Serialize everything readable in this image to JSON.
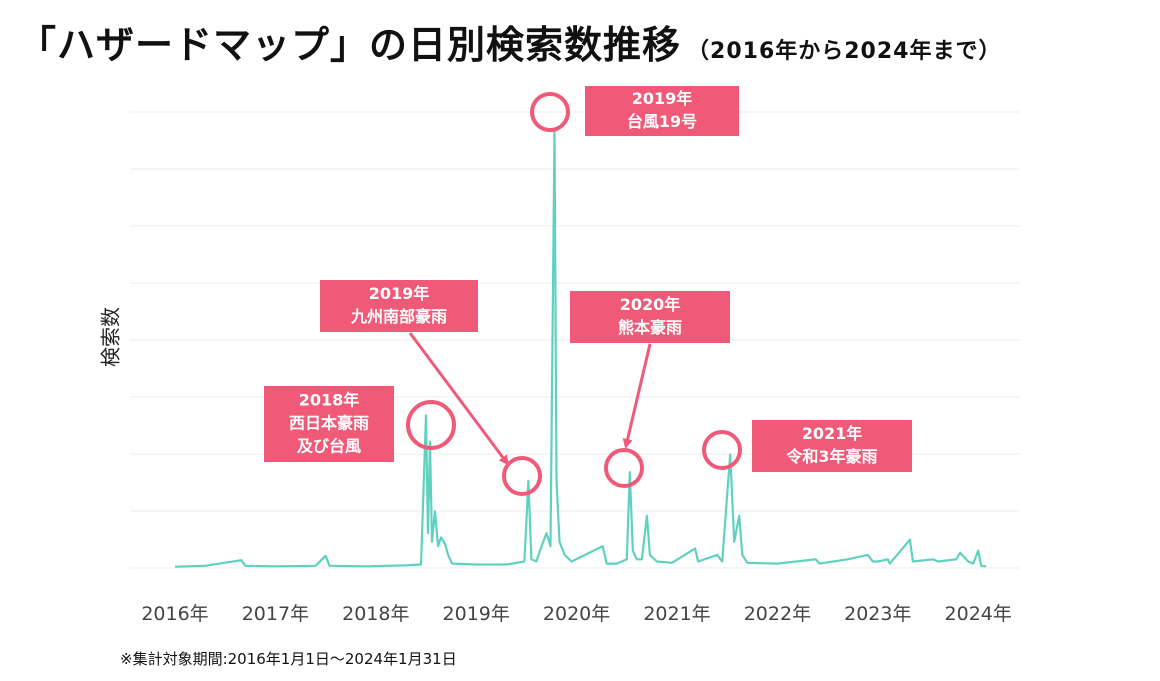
{
  "title": {
    "main": "「ハザードマップ」の日別検索数推移",
    "sub": "（2016年から2024年まで）"
  },
  "footnote": "※集計対象期間:2016年1月1日～2024年1月31日",
  "colors": {
    "line": "#5fd2bf",
    "accent": "#f05a78",
    "label_box": "#f05a78",
    "grid": "#ececec"
  },
  "chart_data": {
    "type": "line",
    "title": "「ハザードマップ」の日別検索数推移",
    "ylabel": "検索数",
    "xlabel": "",
    "x_ticks": [
      "2016年",
      "2017年",
      "2018年",
      "2019年",
      "2020年",
      "2021年",
      "2022年",
      "2023年",
      "2024年"
    ],
    "x_range": [
      2016.0,
      2024.1
    ],
    "y_range": [
      0,
      100
    ],
    "y_axis_ticks_shown": false,
    "grid": "horizontal",
    "series": [
      {
        "values": [
          [
            2016.0,
            0.3
          ],
          [
            2016.3,
            0.5
          ],
          [
            2016.66,
            1.8
          ],
          [
            2016.7,
            0.5
          ],
          [
            2017.0,
            0.4
          ],
          [
            2017.4,
            0.5
          ],
          [
            2017.5,
            2.8
          ],
          [
            2017.54,
            0.5
          ],
          [
            2017.9,
            0.4
          ],
          [
            2018.3,
            0.6
          ],
          [
            2018.45,
            0.8
          ],
          [
            2018.5,
            35
          ],
          [
            2018.52,
            8
          ],
          [
            2018.54,
            29
          ],
          [
            2018.56,
            6
          ],
          [
            2018.59,
            13
          ],
          [
            2018.62,
            5
          ],
          [
            2018.65,
            7
          ],
          [
            2018.69,
            5.5
          ],
          [
            2018.72,
            3
          ],
          [
            2018.76,
            1
          ],
          [
            2019.0,
            0.8
          ],
          [
            2019.3,
            0.8
          ],
          [
            2019.48,
            1.5
          ],
          [
            2019.52,
            20
          ],
          [
            2019.55,
            2
          ],
          [
            2019.6,
            1.5
          ],
          [
            2019.65,
            5
          ],
          [
            2019.7,
            8
          ],
          [
            2019.74,
            5
          ],
          [
            2019.78,
            100
          ],
          [
            2019.8,
            20
          ],
          [
            2019.83,
            6
          ],
          [
            2019.88,
            3
          ],
          [
            2019.95,
            1.5
          ],
          [
            2020.26,
            5
          ],
          [
            2020.3,
            1
          ],
          [
            2020.4,
            1
          ],
          [
            2020.5,
            2
          ],
          [
            2020.53,
            22
          ],
          [
            2020.56,
            4
          ],
          [
            2020.6,
            2
          ],
          [
            2020.65,
            2
          ],
          [
            2020.7,
            12
          ],
          [
            2020.73,
            3
          ],
          [
            2020.8,
            1.5
          ],
          [
            2020.95,
            1.2
          ],
          [
            2021.18,
            4.5
          ],
          [
            2021.21,
            1.5
          ],
          [
            2021.4,
            3
          ],
          [
            2021.45,
            1.5
          ],
          [
            2021.53,
            26
          ],
          [
            2021.57,
            6
          ],
          [
            2021.62,
            12
          ],
          [
            2021.65,
            3
          ],
          [
            2021.7,
            1.2
          ],
          [
            2022.0,
            1
          ],
          [
            2022.38,
            2
          ],
          [
            2022.42,
            1
          ],
          [
            2022.7,
            2
          ],
          [
            2022.9,
            3
          ],
          [
            2022.95,
            1.5
          ],
          [
            2023.0,
            1.5
          ],
          [
            2023.1,
            2
          ],
          [
            2023.12,
            1
          ],
          [
            2023.32,
            6.5
          ],
          [
            2023.35,
            1.5
          ],
          [
            2023.55,
            2
          ],
          [
            2023.6,
            1.5
          ],
          [
            2023.78,
            2
          ],
          [
            2023.82,
            3.5
          ],
          [
            2023.9,
            1.5
          ],
          [
            2023.95,
            1
          ],
          [
            2024.0,
            4
          ],
          [
            2024.03,
            0.5
          ],
          [
            2024.08,
            0.4
          ]
        ]
      }
    ],
    "annotations": [
      {
        "id": "2018",
        "lines": [
          "2018年",
          "西日本豪雨",
          "及び台風"
        ],
        "target": [
          2018.5,
          35
        ]
      },
      {
        "id": "2019-kyushu",
        "lines": [
          "2019年",
          "九州南部豪雨"
        ],
        "target": [
          2019.52,
          20
        ]
      },
      {
        "id": "2019-typhoon",
        "lines": [
          "2019年",
          "台風19号"
        ],
        "target": [
          2019.78,
          100
        ]
      },
      {
        "id": "2020",
        "lines": [
          "2020年",
          "熊本豪雨"
        ],
        "target": [
          2020.53,
          22
        ]
      },
      {
        "id": "2021",
        "lines": [
          "2021年",
          "令和3年豪雨"
        ],
        "target": [
          2021.53,
          26
        ]
      }
    ]
  }
}
